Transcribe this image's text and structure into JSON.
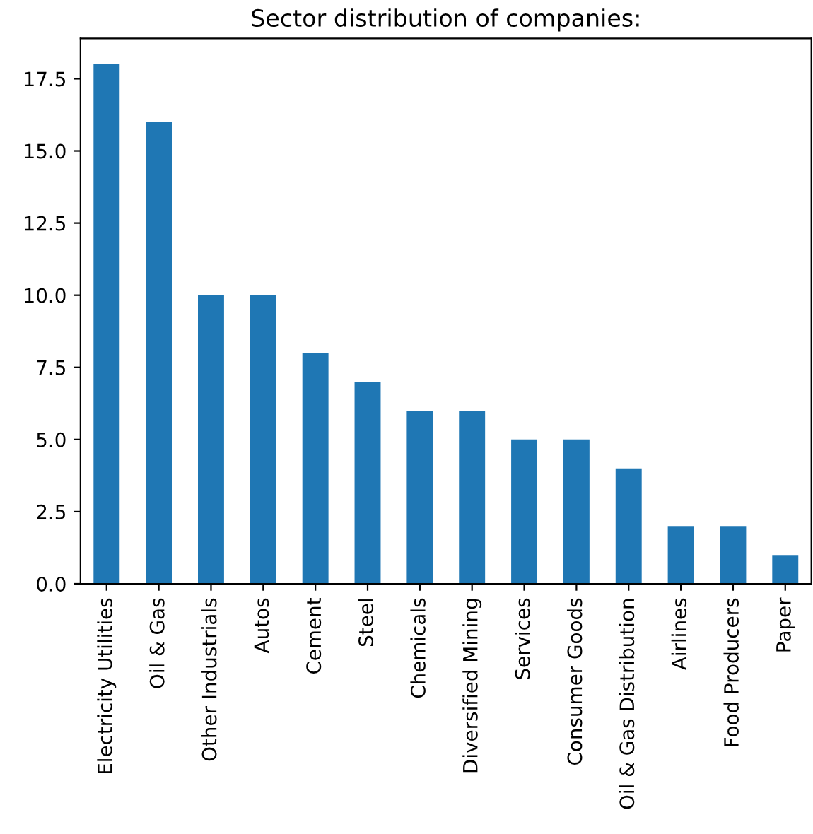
{
  "chart_data": {
    "type": "bar",
    "title": "Sector distribution of companies:",
    "categories": [
      "Electricity Utilities",
      "Oil & Gas",
      "Other Industrials",
      "Autos",
      "Cement",
      "Steel",
      "Chemicals",
      "Diversified Mining",
      "Services",
      "Consumer Goods",
      "Oil & Gas Distribution",
      "Airlines",
      "Food Producers",
      "Paper"
    ],
    "values": [
      18,
      16,
      10,
      10,
      8,
      7,
      6,
      6,
      5,
      5,
      4,
      2,
      2,
      1
    ],
    "color": "#1f77b4",
    "ylim": [
      0.0,
      18.9
    ],
    "yticks": [
      {
        "value": 0,
        "label": "0.0"
      },
      2.5,
      {
        "value": 5,
        "label": "5.0"
      },
      7.5,
      {
        "value": 10,
        "label": "10.0"
      },
      12.5,
      {
        "value": 15,
        "label": "15.0"
      },
      17.5
    ],
    "grid": false
  }
}
